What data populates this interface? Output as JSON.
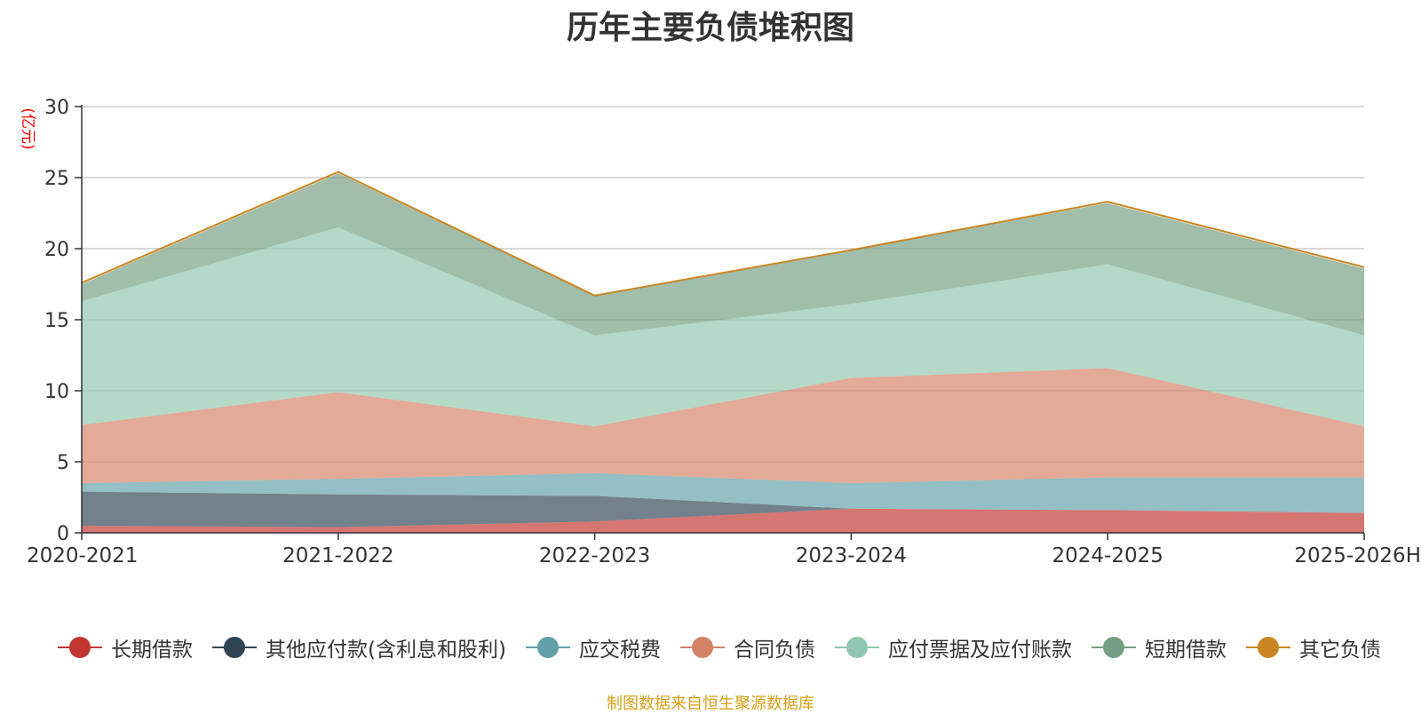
{
  "chart_data": {
    "type": "area",
    "stacked": true,
    "title": "历年主要负债堆积图",
    "ylabel": "(亿元)",
    "xlabel": "",
    "ylim": [
      0,
      30
    ],
    "yticks": [
      "0",
      "5",
      "10",
      "15",
      "20",
      "25",
      "30"
    ],
    "grid": true,
    "legend_position": "bottom",
    "categories": [
      "2020-2021",
      "2021-2022",
      "2022-2023",
      "2023-2024",
      "2024-2025",
      "2025-2026H"
    ],
    "series": [
      {
        "name": "长期借款",
        "color": "#c23531",
        "values": [
          0.5,
          0.4,
          0.8,
          1.7,
          1.6,
          1.4
        ]
      },
      {
        "name": "其他应付款(含利息和股利)",
        "color": "#2f4554",
        "values": [
          2.4,
          2.3,
          1.8,
          0.0,
          0.0,
          0.0
        ]
      },
      {
        "name": "应交税费",
        "color": "#61a0a8",
        "values": [
          0.6,
          1.1,
          1.6,
          1.8,
          2.3,
          2.5
        ]
      },
      {
        "name": "合同负债",
        "color": "#d48265",
        "values": [
          4.1,
          6.1,
          3.3,
          7.4,
          7.7,
          3.6
        ]
      },
      {
        "name": "应付票据及应付账款",
        "color": "#91c7ae",
        "values": [
          8.7,
          11.6,
          6.4,
          5.2,
          7.3,
          6.4
        ]
      },
      {
        "name": "短期借款",
        "color": "#749f83",
        "values": [
          1.2,
          3.8,
          2.8,
          3.8,
          4.3,
          4.7
        ]
      },
      {
        "name": "其它负债",
        "color": "#ca8622",
        "values": [
          0.1,
          0.1,
          0.0,
          0.0,
          0.1,
          0.1
        ]
      }
    ]
  },
  "footer": {
    "source": "制图数据来自恒生聚源数据库",
    "source_color": "#d4a017"
  }
}
